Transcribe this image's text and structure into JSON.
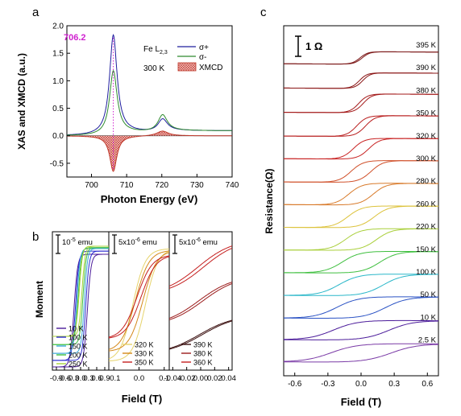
{
  "chart_data": [
    {
      "panel": "a",
      "type": "line",
      "xlabel": "Photon Energy (eV)",
      "ylabel": "XAS and XMCD (a.u.)",
      "xlim": [
        693,
        740
      ],
      "ylim": [
        -0.75,
        2.0
      ],
      "xticks": [
        "700",
        "710",
        "720",
        "730",
        "740"
      ],
      "yticks": [
        "-0.5",
        "0.0",
        "0.5",
        "1.0",
        "1.5",
        "2.0"
      ],
      "ytick_values": [
        -0.5,
        0,
        0.5,
        1.0,
        1.5,
        2.0
      ],
      "xtick_values": [
        700,
        710,
        720,
        730,
        740
      ],
      "peak_annotation": "706.2",
      "peak_x": 706.2,
      "edge_label": "Fe L",
      "edge_subscript": "2,3",
      "temperature_label": "300 K",
      "legend_position": "top-right",
      "series": [
        {
          "name": "σ+",
          "color": "#1f1f9e",
          "peaks": [
            {
              "x0": 706.2,
              "amp": 1.8,
              "w": 1.3
            },
            {
              "x0": 720.2,
              "amp": 0.22,
              "w": 1.6
            }
          ],
          "step": 0.06
        },
        {
          "name": "σ-",
          "color": "#2e8b2e",
          "peaks": [
            {
              "x0": 706.2,
              "amp": 1.15,
              "w": 1.3
            },
            {
              "x0": 720.2,
              "amp": 0.3,
              "w": 1.6
            }
          ],
          "step": 0.06
        },
        {
          "name": "XMCD",
          "color": "#c0392b",
          "fill": true,
          "peaks": [
            {
              "x0": 706.2,
              "amp": -0.65,
              "w": 1.2
            },
            {
              "x0": 720.2,
              "amp": 0.09,
              "w": 2.0
            }
          ],
          "step": 0
        }
      ]
    },
    {
      "panel": "b",
      "type": "line",
      "xlabel": "Field (T)",
      "ylabel": "Moment",
      "subpanels": [
        {
          "scale_label": "10",
          "scale_exp": "-5",
          "scale_unit": " emu",
          "xlim": [
            -1.05,
            1.05
          ],
          "xticks": [
            "-0.9",
            "-0.6",
            "-0.3",
            "0.0",
            "0.3",
            "0.6",
            "0.9"
          ],
          "xtick_values": [
            -0.9,
            -0.6,
            -0.3,
            0.0,
            0.3,
            0.6,
            0.9
          ],
          "series": [
            {
              "name": "10 K",
              "color": "#4b1b9a",
              "hc": 0.25,
              "width": 0.14,
              "ms": 1.0
            },
            {
              "name": "100 K",
              "color": "#2a2ad0",
              "hc": 0.19,
              "width": 0.13,
              "ms": 0.97
            },
            {
              "name": "150 K",
              "color": "#3aa8d8",
              "hc": 0.14,
              "width": 0.12,
              "ms": 0.93
            },
            {
              "name": "200 K",
              "color": "#3fbf3f",
              "hc": 0.09,
              "width": 0.12,
              "ms": 0.86
            },
            {
              "name": "250 K",
              "color": "#a8d23a",
              "hc": 0.05,
              "width": 0.12,
              "ms": 0.8
            }
          ]
        },
        {
          "scale_label": "5x10",
          "scale_exp": "-6",
          "scale_unit": " emu",
          "xlim": [
            -0.12,
            0.12
          ],
          "xticks": [
            "-0.1",
            "0.0",
            "0.1"
          ],
          "xtick_values": [
            -0.1,
            0.0,
            0.1
          ],
          "series": [
            {
              "name": "320 K",
              "color": "#e6d36a",
              "hc": 0.025,
              "width": 0.05,
              "ms": 1.0
            },
            {
              "name": "330 K",
              "color": "#d4881a",
              "hc": 0.015,
              "width": 0.055,
              "ms": 0.9
            },
            {
              "name": "350 K",
              "color": "#c41e1e",
              "hc": 0.008,
              "width": 0.06,
              "ms": 0.75
            }
          ]
        },
        {
          "scale_label": "5x10",
          "scale_exp": "-6",
          "scale_unit": " emu",
          "xlim": [
            -0.045,
            0.045
          ],
          "xticks": [
            "-0.04",
            "-0.02",
            "0.00",
            "0.02",
            "0.04"
          ],
          "xtick_values": [
            -0.04,
            -0.02,
            0.0,
            0.02,
            0.04
          ],
          "series": [
            {
              "name": "390 K",
              "color": "#3a0f0f",
              "hc": 0.002,
              "width": 0.05,
              "ms": 0.35
            },
            {
              "name": "380 K",
              "color": "#9b1b1b",
              "hc": 0.003,
              "width": 0.05,
              "ms": 0.45
            },
            {
              "name": "360 K",
              "color": "#c41e1e",
              "hc": 0.004,
              "width": 0.05,
              "ms": 0.5
            }
          ]
        }
      ]
    },
    {
      "panel": "c",
      "type": "line",
      "xlabel": "Field (T)",
      "ylabel": "Resistance(Ω)",
      "scale_label": "1 Ω",
      "xlim": [
        -0.7,
        0.7
      ],
      "xticks": [
        "-0.6",
        "-0.3",
        "0.0",
        "0.3",
        "0.6"
      ],
      "xtick_values": [
        -0.6,
        -0.3,
        0.0,
        0.3,
        0.6
      ],
      "series": [
        {
          "name": "395 K",
          "color": "#7a1414",
          "hc": 0.01,
          "width": 0.07,
          "amp": 0.6
        },
        {
          "name": "390 K",
          "color": "#8a1515",
          "hc": 0.015,
          "width": 0.07,
          "amp": 0.75
        },
        {
          "name": "380 K",
          "color": "#a31818",
          "hc": 0.02,
          "width": 0.08,
          "amp": 0.9
        },
        {
          "name": "350 K",
          "color": "#b81c1c",
          "hc": 0.04,
          "width": 0.09,
          "amp": 1.0
        },
        {
          "name": "320 K",
          "color": "#c82222",
          "hc": 0.07,
          "width": 0.1,
          "amp": 1.0
        },
        {
          "name": "300 K",
          "color": "#d0502a",
          "hc": 0.09,
          "width": 0.11,
          "amp": 1.05
        },
        {
          "name": "280 K",
          "color": "#d87a2a",
          "hc": 0.11,
          "width": 0.12,
          "amp": 1.05
        },
        {
          "name": "260 K",
          "color": "#dcc23a",
          "hc": 0.12,
          "width": 0.13,
          "amp": 1.05
        },
        {
          "name": "220 K",
          "color": "#a9cf3a",
          "hc": 0.14,
          "width": 0.14,
          "amp": 1.05
        },
        {
          "name": "150 K",
          "color": "#3fbf3f",
          "hc": 0.17,
          "width": 0.16,
          "amp": 1.05
        },
        {
          "name": "100 K",
          "color": "#2ab7c9",
          "hc": 0.2,
          "width": 0.18,
          "amp": 1.05
        },
        {
          "name": "50 K",
          "color": "#2a52c4",
          "hc": 0.22,
          "width": 0.2,
          "amp": 1.05
        },
        {
          "name": "10 K",
          "color": "#4b1b9a",
          "hc": 0.25,
          "width": 0.22,
          "amp": 0.95
        },
        {
          "name": "2.5 K",
          "color": "#7a3aa6",
          "hc": 0.27,
          "width": 0.24,
          "amp": 0.9
        }
      ]
    }
  ]
}
